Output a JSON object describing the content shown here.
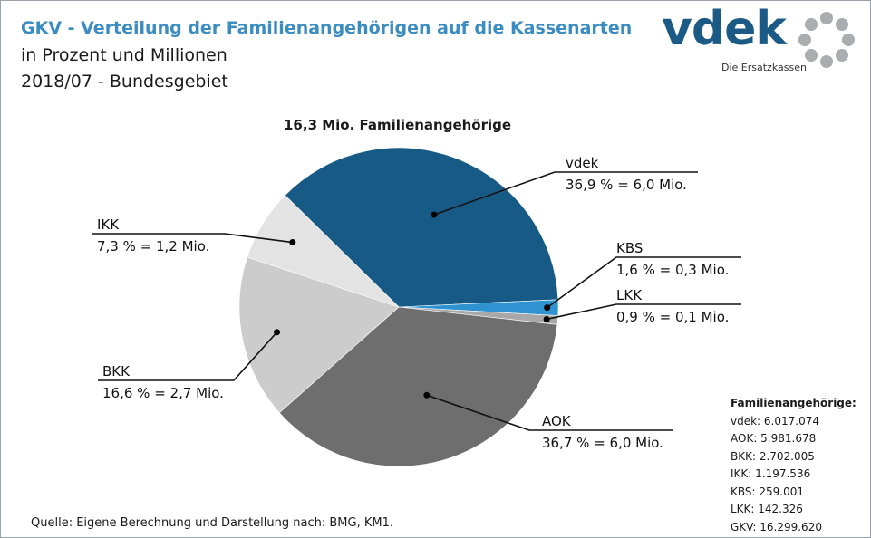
{
  "header": {
    "title": "GKV - Verteilung der Familienangehörigen auf die Kassenarten",
    "subtitle": "in Prozent und Millionen",
    "period": "2018/07 - Bundesgebiet"
  },
  "logo": {
    "name": "vdek",
    "tagline": "Die Ersatzkassen"
  },
  "source": "Quelle: Eigene Berechnung und Darstellung nach: BMG, KM1.",
  "totals": {
    "heading": "Familienangehörige:",
    "rows": [
      "vdek: 6.017.074",
      "AOK: 5.981.678",
      "BKK: 2.702.005",
      "IKK: 1.197.536",
      "KBS: 259.001",
      "LKK: 142.326",
      "GKV: 16.299.620"
    ]
  },
  "colors": {
    "vdek": "#175a86",
    "KBS": "#2e93d0",
    "LKK": "#a8a8a8",
    "AOK": "#6e6e6e",
    "BKK": "#cccccc",
    "IKK": "#e3e3e3"
  },
  "chart_data": {
    "type": "pie",
    "title": "16,3 Mio. Familienangehörige",
    "slices": [
      {
        "name": "vdek",
        "percent": 36.9,
        "millions": 6.0,
        "label": "36,9 % = 6,0 Mio."
      },
      {
        "name": "KBS",
        "percent": 1.6,
        "millions": 0.3,
        "label": "1,6 % = 0,3 Mio."
      },
      {
        "name": "LKK",
        "percent": 0.9,
        "millions": 0.1,
        "label": "0,9 % = 0,1 Mio."
      },
      {
        "name": "AOK",
        "percent": 36.7,
        "millions": 6.0,
        "label": "36,7 % = 6,0 Mio."
      },
      {
        "name": "BKK",
        "percent": 16.6,
        "millions": 2.7,
        "label": "16,6 % = 2,7 Mio."
      },
      {
        "name": "IKK",
        "percent": 7.3,
        "millions": 1.2,
        "label": "7,3 % = 1,2 Mio."
      }
    ]
  }
}
